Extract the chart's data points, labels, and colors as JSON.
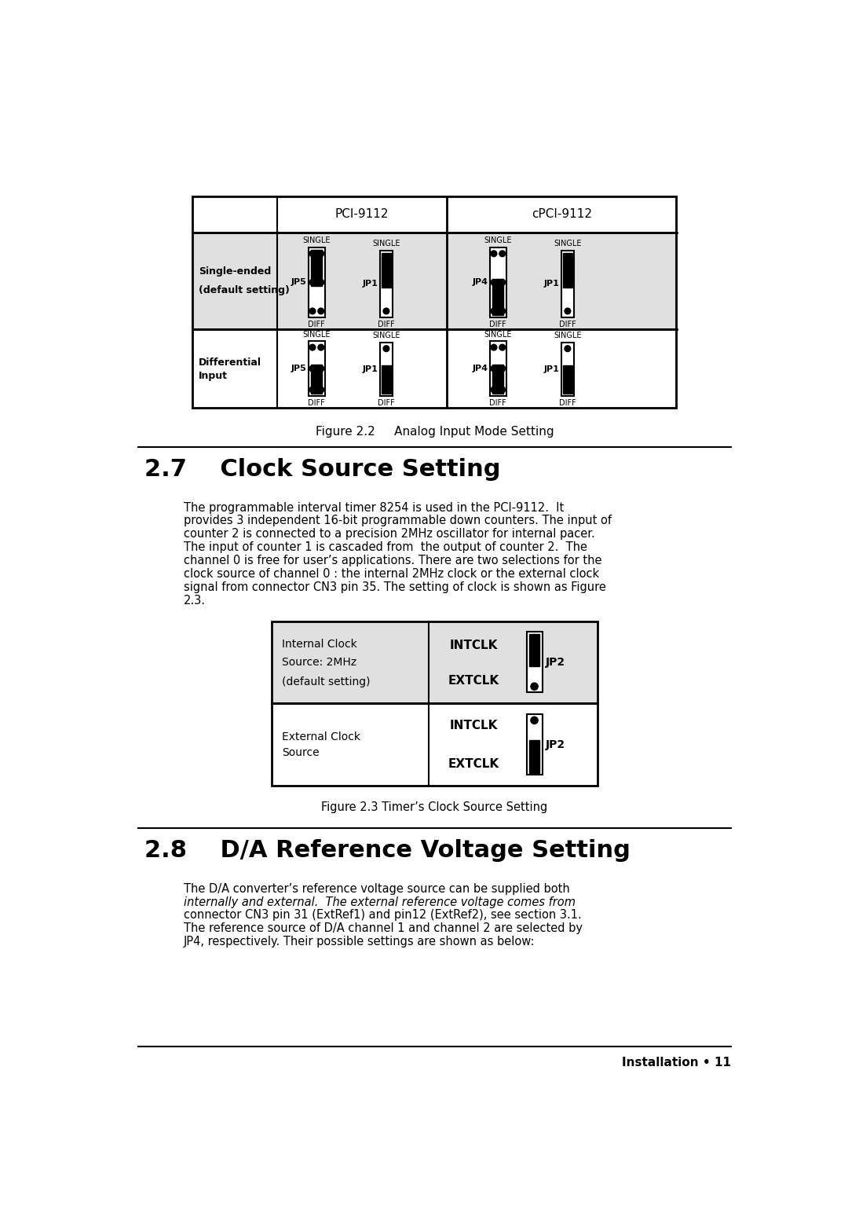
{
  "bg_color": "#ffffff",
  "section_27_title": "2.7    Clock Source Setting",
  "section_28_title": "2.8    D/A Reference Voltage Setting",
  "fig22_caption": "Figure 2.2     Analog Input Mode Setting",
  "fig23_caption": "Figure 2.3 Timer’s Clock Source Setting",
  "body_text_27_lines": [
    "The programmable interval timer 8254 is used in the PCI-9112.  It",
    "provides 3 independent 16-bit programmable down counters. The input of",
    "counter 2 is connected to a precision 2MHz oscillator for internal pacer.",
    "The input of counter 1 is cascaded from  the output of counter 2.  The",
    "channel 0 is free for user’s applications. There are two selections for the",
    "clock source of channel 0 : the internal 2MHz clock or the external clock",
    "signal from connector CN3 pin 35. The setting of clock is shown as Figure",
    "2.3."
  ],
  "body_text_28_lines": [
    "The D/A converter’s reference voltage source can be supplied both",
    "internally and external.  The external reference voltage comes from",
    "connector CN3 pin 31 (ExtRef1) and pin12 (ExtRef2), see section 3.1.",
    "The reference source of D/A channel 1 and channel 2 are selected by",
    "JP4, respectively. Their possible settings are shown as below:"
  ],
  "body28_italic_line": 1,
  "footer_text": "Installation • 11",
  "table_bg_shaded": "#e0e0e0",
  "table_bg_white": "#ffffff"
}
